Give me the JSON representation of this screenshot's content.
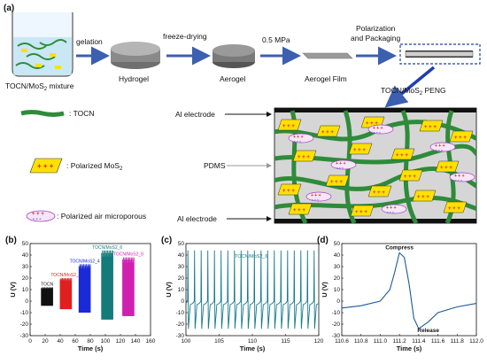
{
  "panel_a": {
    "tag": "(a)",
    "steps": {
      "mixture": "TOCN/MoS",
      "mixture_sub": "2",
      "mixture_tail": " mixture",
      "gelation": "gelation",
      "hydrogel": "Hydrogel",
      "freeze": "freeze-drying",
      "aerogel": "Aerogel",
      "pressure": "0.5 MPa",
      "film": "Aerogel Film",
      "polar1": "Polarization",
      "polar2": "and Packaging",
      "peng_pre": "TOCN/MoS",
      "peng_sub": "2",
      "peng_post": " PENG"
    },
    "legend": {
      "tocn": ": TOCN",
      "mos2_pre": ": Polarized MoS",
      "mos2_sub": "2",
      "air": ": Polarized air microporous"
    },
    "device": {
      "top_electrode": "Al electrode",
      "pdms": "PDMS",
      "bottom_electrode": "Al electrode"
    },
    "colors": {
      "tocn": "#2e8b3a",
      "mos2": "#ffe100",
      "arrow": "#3d5fb0",
      "peng_arrow": "#1e3fb5",
      "pdms_bg": "#d6d6d6"
    }
  },
  "chart_data": [
    {
      "tag": "(b)",
      "type": "bar",
      "ylabel": "U (V)",
      "xlabel": "Time (s)",
      "xlim": [
        0,
        160
      ],
      "ylim": [
        -30,
        50
      ],
      "xticks": [
        "0",
        "20",
        "40",
        "60",
        "80",
        "100",
        "120",
        "140",
        "160"
      ],
      "yticks": [
        "50",
        "40",
        "30",
        "20",
        "10",
        "0",
        "-10",
        "-20",
        "-30"
      ],
      "series": [
        {
          "name": "TOCN",
          "color": "#111111",
          "x_start": 15,
          "x_end": 30,
          "max": 12,
          "min": -4
        },
        {
          "name": "TOCN/MoS2_2",
          "color": "#e02020",
          "x_start": 40,
          "x_end": 55,
          "max": 20,
          "min": -7
        },
        {
          "name": "TOCN/MoS2_4",
          "color": "#1a2bd6",
          "x_start": 65,
          "x_end": 80,
          "max": 32,
          "min": -10
        },
        {
          "name": "TOCN/MoS2_6",
          "color": "#157a7a",
          "x_start": 95,
          "x_end": 110,
          "max": 44,
          "min": -16
        },
        {
          "name": "TOCN/MoS2_8",
          "color": "#d020b0",
          "x_start": 123,
          "x_end": 138,
          "max": 38,
          "min": -13
        }
      ]
    },
    {
      "tag": "(c)",
      "type": "line",
      "ylabel": "U (V)",
      "xlabel": "Time (s)",
      "xlim": [
        100,
        120
      ],
      "ylim": [
        -30,
        50
      ],
      "xticks": [
        "100",
        "105",
        "110",
        "115",
        "120"
      ],
      "yticks": [
        "50",
        "40",
        "30",
        "20",
        "10",
        "0",
        "-10",
        "-20",
        "-30"
      ],
      "legend": "TOCN/MoS2_6",
      "color": "#157a8a",
      "pulse_count": 20,
      "peak": 44,
      "trough": -24,
      "baseline": -2
    },
    {
      "tag": "(d)",
      "type": "line",
      "ylabel": "U (V)",
      "xlabel": "Time (s)",
      "xlim": [
        110.6,
        112.0
      ],
      "ylim": [
        -30,
        50
      ],
      "xticks": [
        "110.6",
        "110.8",
        "111.0",
        "111.2",
        "111.4",
        "111.6",
        "111.8",
        "112.0"
      ],
      "yticks": [
        "50",
        "40",
        "30",
        "20",
        "10",
        "0",
        "-10",
        "-20",
        "-30"
      ],
      "color": "#1a5a9a",
      "annotations": {
        "compress": "Compress",
        "release": "Release"
      },
      "x": [
        110.6,
        110.8,
        111.0,
        111.1,
        111.15,
        111.2,
        111.25,
        111.3,
        111.35,
        111.4,
        111.5,
        111.6,
        111.8,
        112.0
      ],
      "y": [
        -6,
        -4,
        0,
        10,
        25,
        42,
        38,
        15,
        -15,
        -24,
        -18,
        -10,
        -5,
        -2
      ]
    }
  ]
}
